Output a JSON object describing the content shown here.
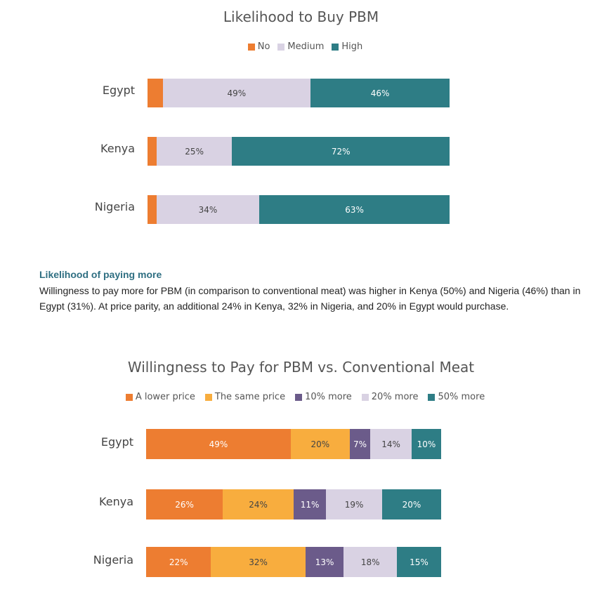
{
  "chart_data": [
    {
      "type": "bar",
      "orientation": "horizontal",
      "stacked": true,
      "title": "Likelihood to Buy PBM",
      "categories": [
        "Egypt",
        "Kenya",
        "Nigeria"
      ],
      "series": [
        {
          "name": "No",
          "color": "#ed7d31",
          "values": [
            5,
            3,
            3
          ],
          "labels": [
            "",
            "",
            ""
          ]
        },
        {
          "name": "Medium",
          "color": "#d9d2e3",
          "values": [
            49,
            25,
            34
          ],
          "labels": [
            "49%",
            "25%",
            "34%"
          ]
        },
        {
          "name": "High",
          "color": "#2e7d85",
          "values": [
            46,
            72,
            63
          ],
          "labels": [
            "46%",
            "72%",
            "63%"
          ]
        }
      ],
      "xlim": [
        0,
        100
      ],
      "legend_position": "top-center",
      "grid": false
    },
    {
      "type": "bar",
      "orientation": "horizontal",
      "stacked": true,
      "title": "Willingness to Pay for PBM vs. Conventional Meat",
      "categories": [
        "Egypt",
        "Kenya",
        "Nigeria"
      ],
      "series": [
        {
          "name": "A lower price",
          "color": "#ed7d31",
          "values": [
            49,
            26,
            22
          ],
          "labels": [
            "49%",
            "26%",
            "22%"
          ]
        },
        {
          "name": "The same price",
          "color": "#f8ad3e",
          "values": [
            20,
            24,
            32
          ],
          "labels": [
            "20%",
            "24%",
            "32%"
          ]
        },
        {
          "name": "10% more",
          "color": "#6b5b8a",
          "values": [
            7,
            11,
            13
          ],
          "labels": [
            "7%",
            "11%",
            "13%"
          ]
        },
        {
          "name": "20% more",
          "color": "#d9d2e3",
          "values": [
            14,
            19,
            18
          ],
          "labels": [
            "14%",
            "19%",
            "18%"
          ]
        },
        {
          "name": "50% more",
          "color": "#2e7d85",
          "values": [
            10,
            20,
            15
          ],
          "labels": [
            "10%",
            "20%",
            "15%"
          ]
        }
      ],
      "xlim": [
        0,
        100
      ],
      "legend_position": "top-center",
      "grid": false
    }
  ],
  "text_section": {
    "heading": "Likelihood of paying more",
    "paragraph": "Willingness to pay more for PBM (in comparison to conventional meat) was higher in Kenya (50%) and Nigeria (46%) than in Egypt (31%). At price parity, an additional 24% in Kenya, 32% in Nigeria, and 20% in Egypt would purchase."
  }
}
